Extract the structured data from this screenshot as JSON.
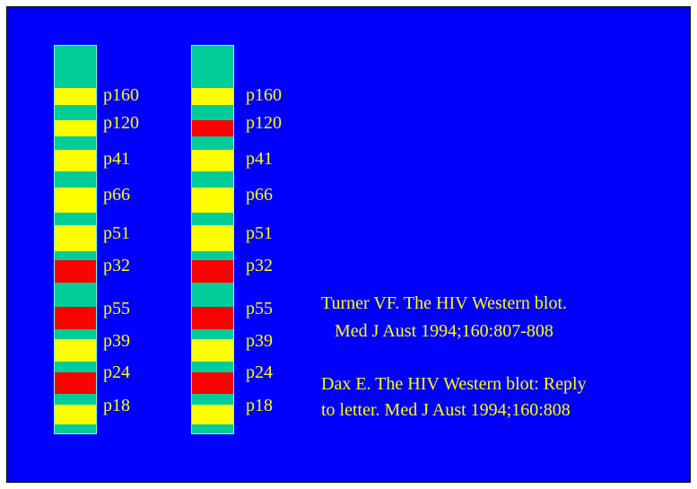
{
  "colors": {
    "background": "#0000ff",
    "strip_base": "#00cc99",
    "band_yellow": "#ffff00",
    "band_red": "#ff0000",
    "text": "#ffff00"
  },
  "strips": [
    {
      "bands": [
        {
          "protein": "p160",
          "label": "p160",
          "color": "yellow"
        },
        {
          "protein": "p120",
          "label": "p120",
          "color": "yellow"
        },
        {
          "protein": "p41",
          "label": "p41",
          "color": "yellow"
        },
        {
          "protein": "p66",
          "label": "p66",
          "color": "yellow"
        },
        {
          "protein": "p51",
          "label": "p51",
          "color": "yellow"
        },
        {
          "protein": "p32",
          "label": "p32",
          "color": "red"
        },
        {
          "protein": "p55",
          "label": "p55",
          "color": "red"
        },
        {
          "protein": "p39",
          "label": "p39",
          "color": "yellow"
        },
        {
          "protein": "p24",
          "label": "p24",
          "color": "red"
        },
        {
          "protein": "p18",
          "label": "p18",
          "color": "yellow"
        }
      ]
    },
    {
      "bands": [
        {
          "protein": "p160",
          "label": "p160",
          "color": "yellow"
        },
        {
          "protein": "p120",
          "label": "p120",
          "color": "red"
        },
        {
          "protein": "p41",
          "label": "p41",
          "color": "yellow"
        },
        {
          "protein": "p66",
          "label": "p66",
          "color": "yellow"
        },
        {
          "protein": "p51",
          "label": "p51",
          "color": "yellow"
        },
        {
          "protein": "p32",
          "label": "p32",
          "color": "red"
        },
        {
          "protein": "p55",
          "label": "p55",
          "color": "red"
        },
        {
          "protein": "p39",
          "label": "p39",
          "color": "yellow"
        },
        {
          "protein": "p24",
          "label": "p24",
          "color": "red"
        },
        {
          "protein": "p18",
          "label": "p18",
          "color": "yellow"
        }
      ]
    }
  ],
  "references": {
    "ref1_line1": "Turner VF. The HIV Western blot.",
    "ref1_line2": "Med J Aust 1994;160:807-808",
    "ref2_line1": "Dax E. The HIV Western blot:  Reply",
    "ref2_line2": "to letter. Med J Aust 1994;160:808"
  }
}
